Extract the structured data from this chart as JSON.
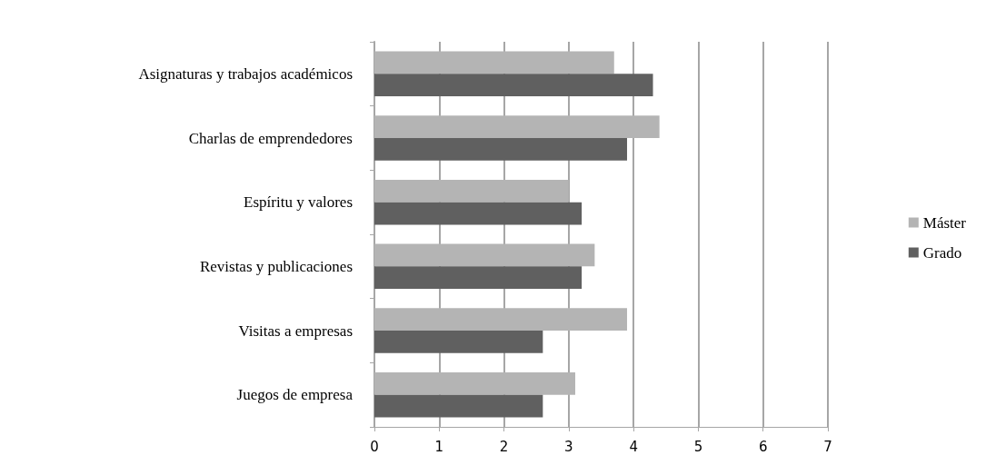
{
  "chart_data": {
    "type": "bar",
    "orientation": "horizontal",
    "categories": [
      "Asignaturas y trabajos académicos",
      "Charlas de emprendedores",
      "Espíritu y valores",
      "Revistas y publicaciones",
      "Visitas a empresas",
      "Juegos de empresa"
    ],
    "series": [
      {
        "name": "Máster",
        "color": "#b4b4b4",
        "values": [
          3.7,
          4.4,
          3.0,
          3.4,
          3.9,
          3.1
        ]
      },
      {
        "name": "Grado",
        "color": "#606060",
        "values": [
          4.3,
          3.9,
          3.2,
          3.2,
          2.6,
          2.6
        ]
      }
    ],
    "xlim": [
      0,
      7
    ],
    "xticks": [
      0,
      1,
      2,
      3,
      4,
      5,
      6,
      7
    ],
    "grid": "x",
    "legend": "right"
  }
}
